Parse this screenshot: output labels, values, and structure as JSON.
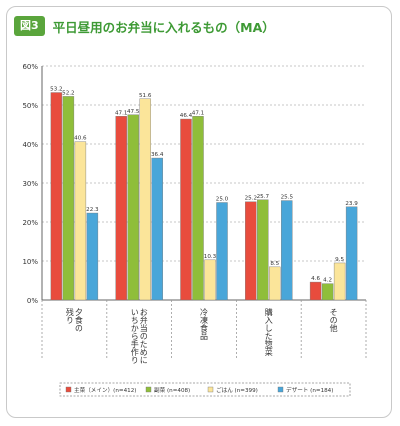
{
  "figure": {
    "badge": "図3",
    "title": "平日昼用のお弁当に入れるもの（MA）"
  },
  "chart_data": {
    "type": "bar",
    "categories": [
      "夕食の残り",
      "お弁当のためにいちから手作り",
      "冷凍食品",
      "購入した惣菜",
      "その他"
    ],
    "category_lines": [
      [
        "夕食の",
        "残り"
      ],
      [
        "お弁当のために",
        "いちから手作り"
      ],
      [
        "冷凍食品"
      ],
      [
        "購入した惣菜"
      ],
      [
        "その他"
      ]
    ],
    "series": [
      {
        "name": "主菜（メイン）(n=412)",
        "values": [
          53.2,
          47.1,
          46.4,
          25.2,
          4.6
        ],
        "color": "#e84c3d"
      },
      {
        "name": "副菜 (n=408)",
        "values": [
          52.2,
          47.5,
          47.1,
          25.7,
          4.2
        ],
        "color": "#8fbe3a"
      },
      {
        "name": "ごはん (n=399)",
        "values": [
          40.6,
          51.6,
          10.3,
          8.5,
          9.5
        ],
        "color": "#fbe59a"
      },
      {
        "name": "デザート (n=184)",
        "values": [
          22.3,
          36.4,
          25.0,
          25.5,
          23.9
        ],
        "color": "#49a6d9"
      }
    ],
    "y_ticks": [
      "0%",
      "10%",
      "20%",
      "30%",
      "40%",
      "50%",
      "60%"
    ],
    "ylim": [
      0,
      60
    ],
    "grid": true,
    "legend_position": "bottom"
  }
}
